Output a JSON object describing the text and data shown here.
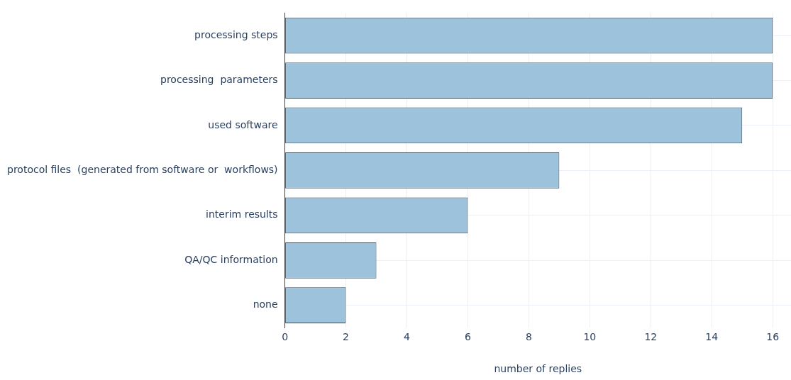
{
  "chart_data": {
    "type": "bar",
    "orientation": "horizontal",
    "categories": [
      "processing steps",
      "processing  parameters",
      "used software",
      "protocol files  (generated from software or  workflows)",
      "interim results",
      "QA/QC information",
      "none"
    ],
    "values": [
      16,
      16,
      15,
      9,
      6,
      3,
      2
    ],
    "color": "#9dc3dc",
    "xlabel": "number of replies",
    "xlim": [
      0,
      16.6
    ],
    "xticks": [
      0,
      2,
      4,
      6,
      8,
      10,
      12,
      14,
      16
    ],
    "grid": true,
    "legend": false
  }
}
